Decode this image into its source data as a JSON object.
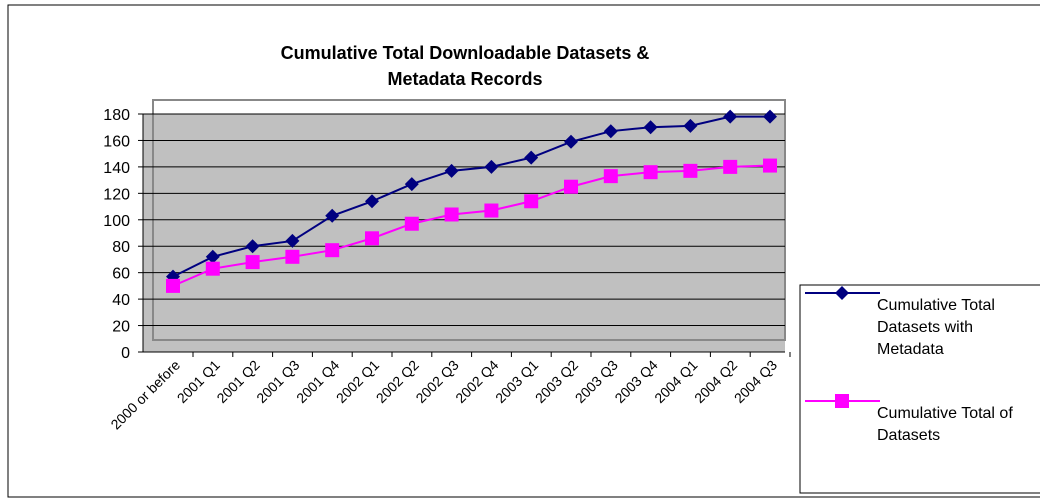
{
  "chart_data": {
    "type": "line",
    "title": "Cumulative Total Downloadable Datasets & Metadata Records",
    "categories": [
      "2000 or before",
      "2001 Q1",
      "2001 Q2",
      "2001 Q3",
      "2001 Q4",
      "2002 Q1",
      "2002 Q2",
      "2002 Q3",
      "2002 Q4",
      "2003 Q1",
      "2003 Q2",
      "2003 Q3",
      "2003 Q4",
      "2004 Q1",
      "2004 Q2",
      "2004 Q3"
    ],
    "series": [
      {
        "name": "Cumulative Total Datasets with Metadata",
        "color": "#000080",
        "marker": "diamond",
        "values": [
          57,
          72,
          80,
          84,
          103,
          114,
          127,
          137,
          140,
          147,
          159,
          167,
          170,
          171,
          178,
          178
        ]
      },
      {
        "name": "Cumulative Total of Datasets",
        "color": "#ff00ff",
        "marker": "square",
        "values": [
          50,
          63,
          68,
          72,
          77,
          86,
          97,
          104,
          107,
          114,
          125,
          133,
          136,
          137,
          140,
          141
        ]
      }
    ],
    "ylim": [
      0,
      180
    ],
    "yticks": [
      0,
      20,
      40,
      60,
      80,
      100,
      120,
      140,
      160,
      180
    ],
    "grid": true
  }
}
